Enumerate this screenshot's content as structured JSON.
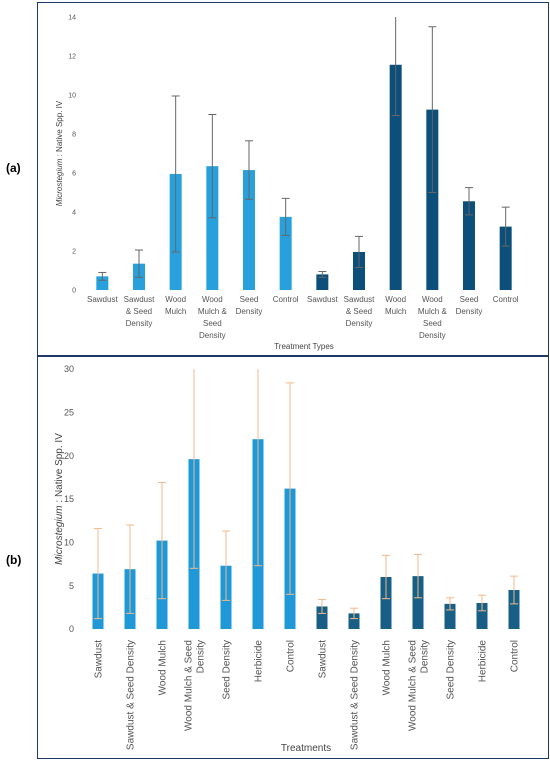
{
  "panels": {
    "a_label": "(a)",
    "b_label": "(b)"
  },
  "chart_data": [
    {
      "type": "bar",
      "panel": "(a)",
      "ylabel_italic": "Microstegium",
      "ylabel_rest": " : Native Spp. IV",
      "xlabel": "Treatment Types",
      "ylim": [
        0,
        14
      ],
      "yticks": [
        0,
        2,
        4,
        6,
        8,
        10,
        12,
        14
      ],
      "grid": false,
      "categories": [
        [
          "Sawdust"
        ],
        [
          "Sawdust",
          "& Seed",
          "Density"
        ],
        [
          "Wood",
          "Mulch"
        ],
        [
          "Wood",
          "Mulch &",
          "Seed",
          "Density"
        ],
        [
          "Seed",
          "Density"
        ],
        [
          "Control"
        ],
        [
          "Sawdust"
        ],
        [
          "Sawdust",
          "& Seed",
          "Density"
        ],
        [
          "Wood",
          "Mulch"
        ],
        [
          "Wood",
          "Mulch &",
          "Seed",
          "Density"
        ],
        [
          "Seed",
          "Density"
        ],
        [
          "Control"
        ]
      ],
      "values": [
        0.7,
        1.35,
        5.95,
        6.35,
        6.15,
        3.75,
        0.8,
        1.95,
        11.55,
        9.25,
        4.55,
        3.25
      ],
      "errors": [
        0.2,
        0.7,
        4.0,
        2.65,
        1.5,
        0.95,
        0.15,
        0.8,
        2.6,
        4.25,
        0.7,
        1.0
      ],
      "colors": [
        "#27a0dc",
        "#27a0dc",
        "#27a0dc",
        "#27a0dc",
        "#27a0dc",
        "#27a0dc",
        "#0b4f7a",
        "#0b4f7a",
        "#0b4f7a",
        "#0b4f7a",
        "#0b4f7a",
        "#0b4f7a"
      ],
      "error_color": "#666666"
    },
    {
      "type": "bar",
      "panel": "(b)",
      "ylabel_italic": "Microstegium",
      "ylabel_rest": " : Native Spp. IV",
      "xlabel": "Treatments",
      "ylim": [
        0,
        30
      ],
      "yticks": [
        0,
        5,
        10,
        15,
        20,
        25,
        30
      ],
      "grid": false,
      "categories": [
        [
          "Sawdust"
        ],
        [
          "Sawdust & Seed Density"
        ],
        [
          "Wood Mulch"
        ],
        [
          "Wood Mulch & Seed",
          "Density"
        ],
        [
          "Seed Density"
        ],
        [
          "Herbicide"
        ],
        [
          "Control"
        ],
        [
          "Sawdust"
        ],
        [
          "Sawdust & Seed Density"
        ],
        [
          "Wood Mulch"
        ],
        [
          "Wood Mulch & Seed",
          "Density"
        ],
        [
          "Seed Density"
        ],
        [
          "Herbicide"
        ],
        [
          "Control"
        ]
      ],
      "values": [
        6.4,
        6.9,
        10.2,
        19.6,
        7.3,
        21.9,
        16.2,
        2.6,
        1.8,
        6.0,
        6.1,
        2.9,
        3.0,
        4.5
      ],
      "errors": [
        5.2,
        5.1,
        6.7,
        12.6,
        4.0,
        14.6,
        12.2,
        0.8,
        0.6,
        2.5,
        2.5,
        0.7,
        0.9,
        1.6
      ],
      "colors": [
        "#1e98d6",
        "#1e98d6",
        "#1e98d6",
        "#1e98d6",
        "#1e98d6",
        "#1e98d6",
        "#1e98d6",
        "#175f84",
        "#175f84",
        "#175f84",
        "#175f84",
        "#175f84",
        "#175f84",
        "#175f84"
      ],
      "error_color": "#f2b98c"
    }
  ]
}
